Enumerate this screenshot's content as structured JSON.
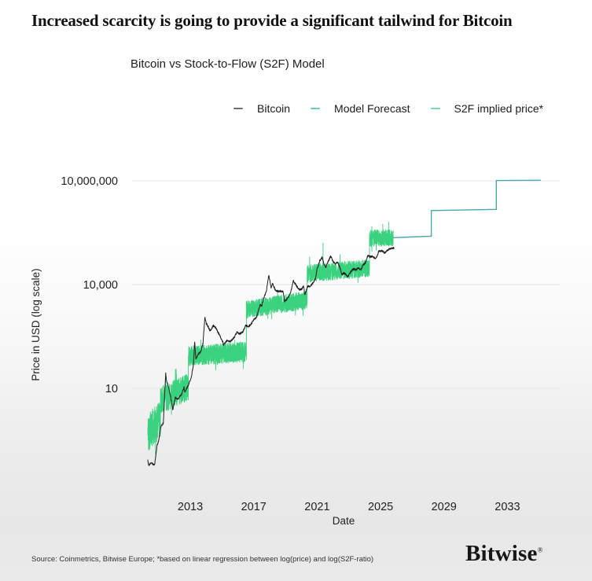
{
  "header": {
    "title": "Increased scarcity is going to provide a significant tailwind for Bitcoin",
    "subtitle": "Bitcoin vs Stock-to-Flow (S2F) Model"
  },
  "legend": {
    "items": [
      {
        "label": "Bitcoin",
        "color": "#6e6e6e"
      },
      {
        "label": "Model Forecast",
        "color": "#6fc4cd"
      },
      {
        "label": "S2F implied price*",
        "color": "#74dda4"
      }
    ]
  },
  "footer": {
    "source": "Source: Coinmetrics, Bitwise Europe; *based on linear regression between log(price) and log(S2F-ratio)",
    "brand": "Bitwise",
    "brand_mark": "®"
  },
  "chart_data": {
    "type": "line",
    "title": "Bitcoin vs Stock-to-Flow (S2F) Model",
    "xlabel": "Date",
    "ylabel": "Price in USD (log scale)",
    "y_scale": "log",
    "grid": true,
    "legend_position": "top",
    "x_axis": {
      "range_years": [
        2009.33,
        2036.3
      ],
      "ticks": [
        {
          "value": 2013,
          "label": "2013"
        },
        {
          "value": 2017,
          "label": "2017"
        },
        {
          "value": 2021,
          "label": "2021"
        },
        {
          "value": 2025,
          "label": "2025"
        },
        {
          "value": 2029,
          "label": "2029"
        },
        {
          "value": 2033,
          "label": "2033"
        }
      ]
    },
    "y_axis": {
      "range": [
        0.04,
        20000000
      ],
      "ticks": [
        {
          "value": 10,
          "label": "10"
        },
        {
          "value": 10000,
          "label": "10,000"
        },
        {
          "value": 10000000,
          "label": "10,000,000"
        }
      ]
    },
    "series": {
      "bitcoin": {
        "name": "Bitcoin",
        "color": "#1f1f1f",
        "points": [
          [
            2010.3,
            0.09
          ],
          [
            2010.38,
            0.06
          ],
          [
            2010.55,
            0.07
          ],
          [
            2010.75,
            0.06
          ],
          [
            2010.9,
            0.22
          ],
          [
            2011.0,
            0.3
          ],
          [
            2011.15,
            0.8
          ],
          [
            2011.3,
            1.0
          ],
          [
            2011.45,
            29
          ],
          [
            2011.5,
            17
          ],
          [
            2011.62,
            11
          ],
          [
            2011.75,
            6
          ],
          [
            2011.9,
            2.3
          ],
          [
            2012.05,
            5.5
          ],
          [
            2012.2,
            4.9
          ],
          [
            2012.45,
            6.6
          ],
          [
            2012.6,
            11
          ],
          [
            2012.66,
            7.5
          ],
          [
            2012.9,
            13.5
          ],
          [
            2013.05,
            20
          ],
          [
            2013.2,
            47
          ],
          [
            2013.28,
            230
          ],
          [
            2013.35,
            68
          ],
          [
            2013.5,
            100
          ],
          [
            2013.65,
            110
          ],
          [
            2013.8,
            200
          ],
          [
            2013.92,
            1130
          ],
          [
            2014.0,
            770
          ],
          [
            2014.12,
            620
          ],
          [
            2014.25,
            450
          ],
          [
            2014.45,
            650
          ],
          [
            2014.6,
            580
          ],
          [
            2014.8,
            380
          ],
          [
            2015.05,
            220
          ],
          [
            2015.1,
            180
          ],
          [
            2015.3,
            240
          ],
          [
            2015.55,
            230
          ],
          [
            2015.8,
            310
          ],
          [
            2015.95,
            430
          ],
          [
            2016.1,
            380
          ],
          [
            2016.3,
            420
          ],
          [
            2016.5,
            670
          ],
          [
            2016.65,
            600
          ],
          [
            2016.85,
            730
          ],
          [
            2017.0,
            980
          ],
          [
            2017.2,
            1180
          ],
          [
            2017.4,
            2600
          ],
          [
            2017.5,
            2400
          ],
          [
            2017.65,
            4300
          ],
          [
            2017.8,
            6500
          ],
          [
            2017.95,
            19000
          ],
          [
            2018.1,
            8300
          ],
          [
            2018.2,
            11000
          ],
          [
            2018.35,
            7000
          ],
          [
            2018.5,
            6400
          ],
          [
            2018.7,
            6500
          ],
          [
            2018.85,
            6300
          ],
          [
            2018.95,
            3300
          ],
          [
            2019.1,
            3800
          ],
          [
            2019.3,
            5300
          ],
          [
            2019.5,
            12800
          ],
          [
            2019.65,
            10000
          ],
          [
            2019.85,
            7300
          ],
          [
            2020.0,
            7200
          ],
          [
            2020.15,
            9000
          ],
          [
            2020.22,
            5000
          ],
          [
            2020.4,
            8800
          ],
          [
            2020.6,
            9200
          ],
          [
            2020.75,
            11500
          ],
          [
            2020.9,
            15500
          ],
          [
            2021.0,
            29000
          ],
          [
            2021.05,
            33000
          ],
          [
            2021.15,
            47000
          ],
          [
            2021.3,
            62000
          ],
          [
            2021.45,
            37000
          ],
          [
            2021.55,
            32000
          ],
          [
            2021.7,
            47000
          ],
          [
            2021.85,
            67000
          ],
          [
            2022.0,
            47000
          ],
          [
            2022.15,
            39000
          ],
          [
            2022.3,
            45000
          ],
          [
            2022.45,
            30000
          ],
          [
            2022.55,
            19500
          ],
          [
            2022.7,
            21500
          ],
          [
            2022.85,
            19000
          ],
          [
            2022.95,
            16600
          ],
          [
            2023.1,
            23000
          ],
          [
            2023.3,
            28500
          ],
          [
            2023.45,
            26500
          ],
          [
            2023.6,
            30000
          ],
          [
            2023.75,
            26000
          ],
          [
            2023.9,
            37000
          ],
          [
            2024.05,
            43000
          ],
          [
            2024.2,
            70000
          ],
          [
            2024.35,
            63000
          ],
          [
            2024.5,
            65000
          ],
          [
            2024.65,
            57000
          ],
          [
            2024.8,
            69000
          ],
          [
            2024.9,
            98000
          ],
          [
            2025.0,
            94000
          ],
          [
            2025.1,
            97000
          ],
          [
            2025.25,
            83000
          ],
          [
            2025.4,
            95000
          ],
          [
            2025.55,
            108000
          ],
          [
            2025.7,
            110000
          ],
          [
            2025.85,
            117000
          ]
        ]
      },
      "s2f_implied": {
        "name": "S2F implied price*",
        "color": "#3ad17f",
        "note": "noisy band, roughly constant within each halving era",
        "segments": [
          {
            "start": 2010.32,
            "end": 2011.12,
            "v_start": 0.5,
            "v_end": 1.3,
            "spread_log10": 0.55
          },
          {
            "start": 2011.12,
            "end": 2012.88,
            "v_start": 4.5,
            "v_end": 11,
            "spread_log10": 0.4
          },
          {
            "start": 2012.88,
            "end": 2016.54,
            "v_start": 85,
            "v_end": 115,
            "spread_log10": 0.3
          },
          {
            "start": 2016.54,
            "end": 2020.37,
            "v_start": 1900,
            "v_end": 3600,
            "spread_log10": 0.27
          },
          {
            "start": 2020.37,
            "end": 2024.3,
            "v_start": 21000,
            "v_end": 30000,
            "spread_log10": 0.26
          },
          {
            "start": 2024.3,
            "end": 2025.8,
            "v_start": 215000,
            "v_end": 230000,
            "spread_log10": 0.25
          }
        ],
        "spikes": [
          [
            2021.37,
            160000
          ],
          [
            2024.45,
            480000
          ]
        ]
      },
      "model_forecast": {
        "name": "Model Forecast",
        "color": "#4aa6b2",
        "points": [
          [
            2025.8,
            228000
          ],
          [
            2028.2,
            250000
          ],
          [
            2028.2,
            1380000
          ],
          [
            2032.3,
            1500000
          ],
          [
            2032.3,
            10200000
          ],
          [
            2035.1,
            10350000
          ]
        ]
      }
    }
  }
}
